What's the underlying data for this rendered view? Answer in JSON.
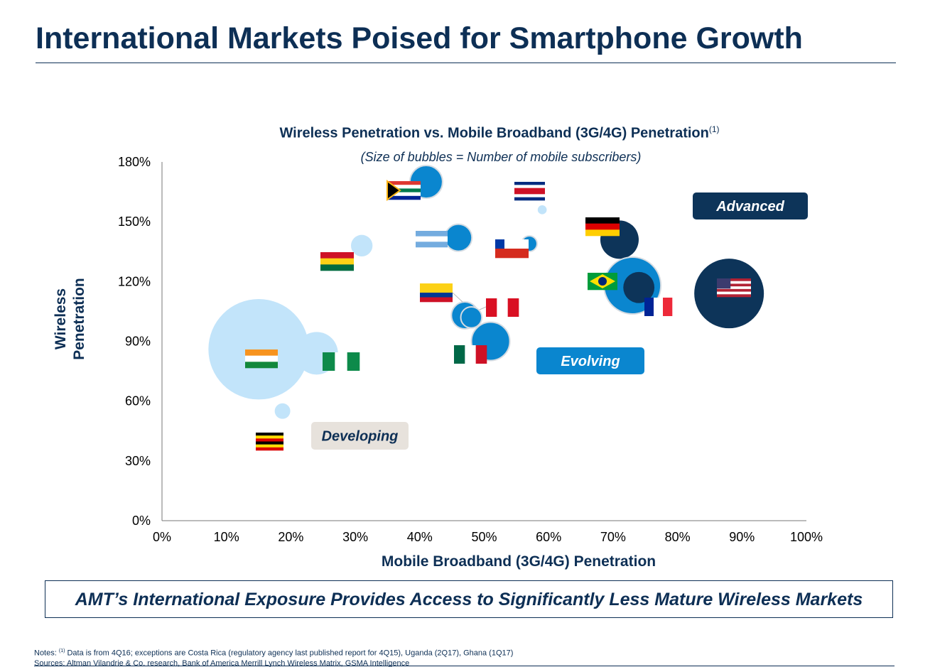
{
  "header": {
    "title": "International Markets Poised for Smartphone Growth"
  },
  "banner": "AMT’s International Exposure Provides Access to Significantly Less Mature Wireless Markets",
  "notes": {
    "prefix": "Notes: ",
    "sup": "(1)",
    "text": " Data is from 4Q16; exceptions are Costa Rica (regulatory agency last published report for 4Q15), Uganda (2Q17), Ghana (1Q17)",
    "sources": "Sources: Altman Vilandrie & Co. research, Bank of America Merrill Lynch Wireless Matrix, GSMA Intelligence"
  },
  "chart_data": {
    "type": "scatter",
    "title": "Wireless Penetration vs. Mobile Broadband (3G/4G) Penetration",
    "title_sup": "(1)",
    "subtitle": "(Size of bubbles = Number of mobile subscribers)",
    "xlabel": "Mobile Broadband (3G/4G) Penetration",
    "ylabel_line1": "Wireless",
    "ylabel_line2": "Penetration",
    "xlim": [
      0,
      100
    ],
    "ylim": [
      0,
      180
    ],
    "xticks": [
      "0%",
      "10%",
      "20%",
      "30%",
      "40%",
      "50%",
      "60%",
      "70%",
      "80%",
      "90%",
      "100%"
    ],
    "yticks": [
      "0%",
      "30%",
      "60%",
      "90%",
      "120%",
      "150%",
      "180%"
    ],
    "grid": false,
    "colors": {
      "developing": "#c2e4fa",
      "evolving": "#0a86cf",
      "advanced": "#0d3459"
    },
    "labels": [
      {
        "text": "Developing",
        "group": "developing"
      },
      {
        "text": "Evolving",
        "group": "evolving"
      },
      {
        "text": "Advanced",
        "group": "advanced"
      }
    ],
    "points": [
      {
        "flag": "india-flag",
        "x": 15,
        "y": 86,
        "size": 50,
        "group": "developing"
      },
      {
        "flag": "nigeria-flag",
        "x": 24,
        "y": 84,
        "size": 9,
        "group": "developing"
      },
      {
        "flag": "uganda-flag",
        "x": 18.7,
        "y": 55,
        "size": 1.2,
        "group": "developing"
      },
      {
        "flag": "ghana-flag",
        "x": 31,
        "y": 138,
        "size": 2.3,
        "group": "developing"
      },
      {
        "flag": "south-africa-flag",
        "x": 41,
        "y": 170,
        "size": 5.3,
        "group": "evolving"
      },
      {
        "flag": "argentina-flag",
        "x": 46,
        "y": 142,
        "size": 3.6,
        "group": "evolving"
      },
      {
        "flag": "costa-rica-flag",
        "x": 59,
        "y": 156,
        "size": 0.4,
        "group": "developing"
      },
      {
        "flag": "chile-flag",
        "x": 57,
        "y": 139,
        "size": 1.2,
        "group": "evolving"
      },
      {
        "flag": "colombia-flag",
        "x": 47,
        "y": 103,
        "size": 3.6,
        "group": "evolving"
      },
      {
        "flag": "peru-flag",
        "x": 48,
        "y": 102,
        "size": 2.2,
        "group": "evolving"
      },
      {
        "flag": "mexico-flag",
        "x": 51,
        "y": 90,
        "size": 7.3,
        "group": "evolving"
      },
      {
        "flag": "germany-flag",
        "x": 71,
        "y": 141,
        "size": 7.3,
        "group": "advanced"
      },
      {
        "flag": "brazil-flag",
        "x": 73,
        "y": 118,
        "size": 16,
        "group": "evolving"
      },
      {
        "flag": "france-flag",
        "x": 74,
        "y": 117,
        "size": 4.8,
        "group": "advanced"
      },
      {
        "flag": "usa-flag",
        "x": 88,
        "y": 114,
        "size": 24,
        "group": "advanced"
      }
    ]
  }
}
